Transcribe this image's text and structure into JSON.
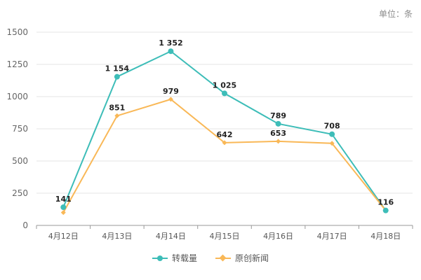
{
  "unit_label": "单位：条",
  "colors": {
    "repost": "#3dbdb8",
    "original": "#f9b857",
    "grid": "#e6e6e6",
    "axis": "#999999"
  },
  "chart_data": {
    "type": "line",
    "title": "",
    "xlabel": "",
    "ylabel": "",
    "categories": [
      "4月12日",
      "4月13日",
      "4月14日",
      "4月15日",
      "4月16日",
      "4月17日",
      "4月18日"
    ],
    "ylim": [
      0,
      1500
    ],
    "yticks": [
      0,
      250,
      500,
      750,
      1000,
      1250,
      1500
    ],
    "series": [
      {
        "name": "转载量",
        "values": [
          141,
          1154,
          1352,
          1025,
          789,
          708,
          116
        ],
        "labels": [
          "141",
          "1 154",
          "1 352",
          "1 025",
          "789",
          "708",
          "116"
        ],
        "marker": "circle"
      },
      {
        "name": "原创新闻",
        "values": [
          100,
          851,
          979,
          642,
          653,
          637,
          116
        ],
        "labels": [
          "",
          "851",
          "979",
          "642",
          "653",
          "",
          ""
        ],
        "marker": "diamond"
      }
    ],
    "legend_position": "bottom-center",
    "grid": true
  }
}
